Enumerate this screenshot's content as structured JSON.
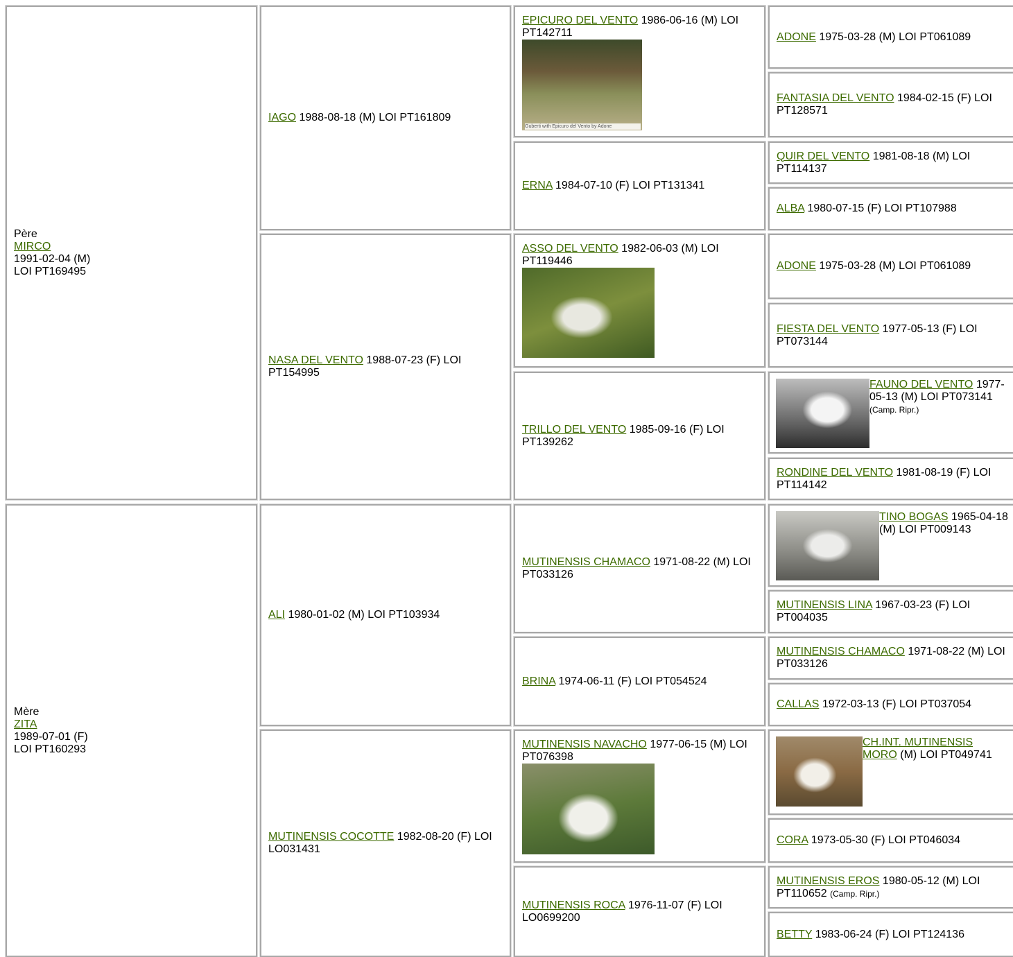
{
  "sire": {
    "label": "Père",
    "name": "MIRCO",
    "lines": [
      "1991-02-04 (M)",
      "LOI PT169495"
    ]
  },
  "dam": {
    "label": "Mère",
    "name": "ZITA",
    "lines": [
      "1989-07-01 (F)",
      "LOI PT160293"
    ]
  },
  "generation2": [
    {
      "name": "IAGO",
      "details": "1988-08-18 (M) LOI PT161809"
    },
    {
      "name": "NASA DEL VENTO",
      "details": "1988-07-23 (F) LOI PT154995"
    },
    {
      "name": "ALI",
      "details": "1980-01-02 (M) LOI PT103934"
    },
    {
      "name": "MUTINENSIS COCOTTE",
      "details": "1982-08-20 (F) LOI LO031431"
    }
  ],
  "generation3": [
    {
      "name": "EPICURO DEL VENTO",
      "details": "1986-06-16 (M) LOI PT142711",
      "photo_caption": "Guberti with Epicuro del Vento by Adone"
    },
    {
      "name": "ERNA",
      "details": "1984-07-10 (F) LOI PT131341"
    },
    {
      "name": "ASSO DEL VENTO",
      "details": "1982-06-03 (M) LOI PT119446"
    },
    {
      "name": "TRILLO DEL VENTO",
      "details": "1985-09-16 (F) LOI PT139262"
    },
    {
      "name": "MUTINENSIS CHAMACO",
      "details": "1971-08-22 (M) LOI PT033126"
    },
    {
      "name": "BRINA",
      "details": "1974-06-11 (F) LOI PT054524"
    },
    {
      "name": "MUTINENSIS NAVACHO",
      "details": "1977-06-15 (M) LOI PT076398"
    },
    {
      "name": "MUTINENSIS ROCA",
      "details": "1976-11-07 (F) LOI LO0699200"
    }
  ],
  "generation4": [
    {
      "name": "ADONE",
      "details": "1975-03-28 (M) LOI PT061089"
    },
    {
      "name": "FANTASIA DEL VENTO",
      "details": "1984-02-15 (F) LOI PT128571"
    },
    {
      "name": "QUIR DEL VENTO",
      "details": "1981-08-18 (M) LOI PT114137"
    },
    {
      "name": "ALBA",
      "details": "1980-07-15 (F) LOI PT107988"
    },
    {
      "name": "ADONE",
      "details": "1975-03-28 (M) LOI PT061089"
    },
    {
      "name": "FIESTA DEL VENTO",
      "details": "1977-05-13 (F) LOI PT073144"
    },
    {
      "name": "FAUNO DEL VENTO",
      "details": "1977-05-13 (M) LOI PT073141",
      "note": "(Camp. Ripr.)"
    },
    {
      "name": "RONDINE DEL VENTO",
      "details": "1981-08-19 (F) LOI PT114142"
    },
    {
      "name": "TINO BOGAS",
      "details": "1965-04-18 (M) LOI PT009143"
    },
    {
      "name": "MUTINENSIS LINA",
      "details": "1967-03-23 (F) LOI PT004035"
    },
    {
      "name": "MUTINENSIS CHAMACO",
      "details": "1971-08-22 (M) LOI PT033126"
    },
    {
      "name": "CALLAS",
      "details": "1972-03-13 (F) LOI PT037054"
    },
    {
      "name": "CH.INT. MUTINENSIS MORO",
      "details": "(M) LOI PT049741"
    },
    {
      "name": "CORA",
      "details": "1973-05-30 (F) LOI PT046034"
    },
    {
      "name": "MUTINENSIS EROS",
      "details": "1980-05-12 (M) LOI PT110652",
      "note": "(Camp. Ripr.)"
    },
    {
      "name": "BETTY",
      "details": "1983-06-24 (F) LOI PT124136"
    }
  ]
}
